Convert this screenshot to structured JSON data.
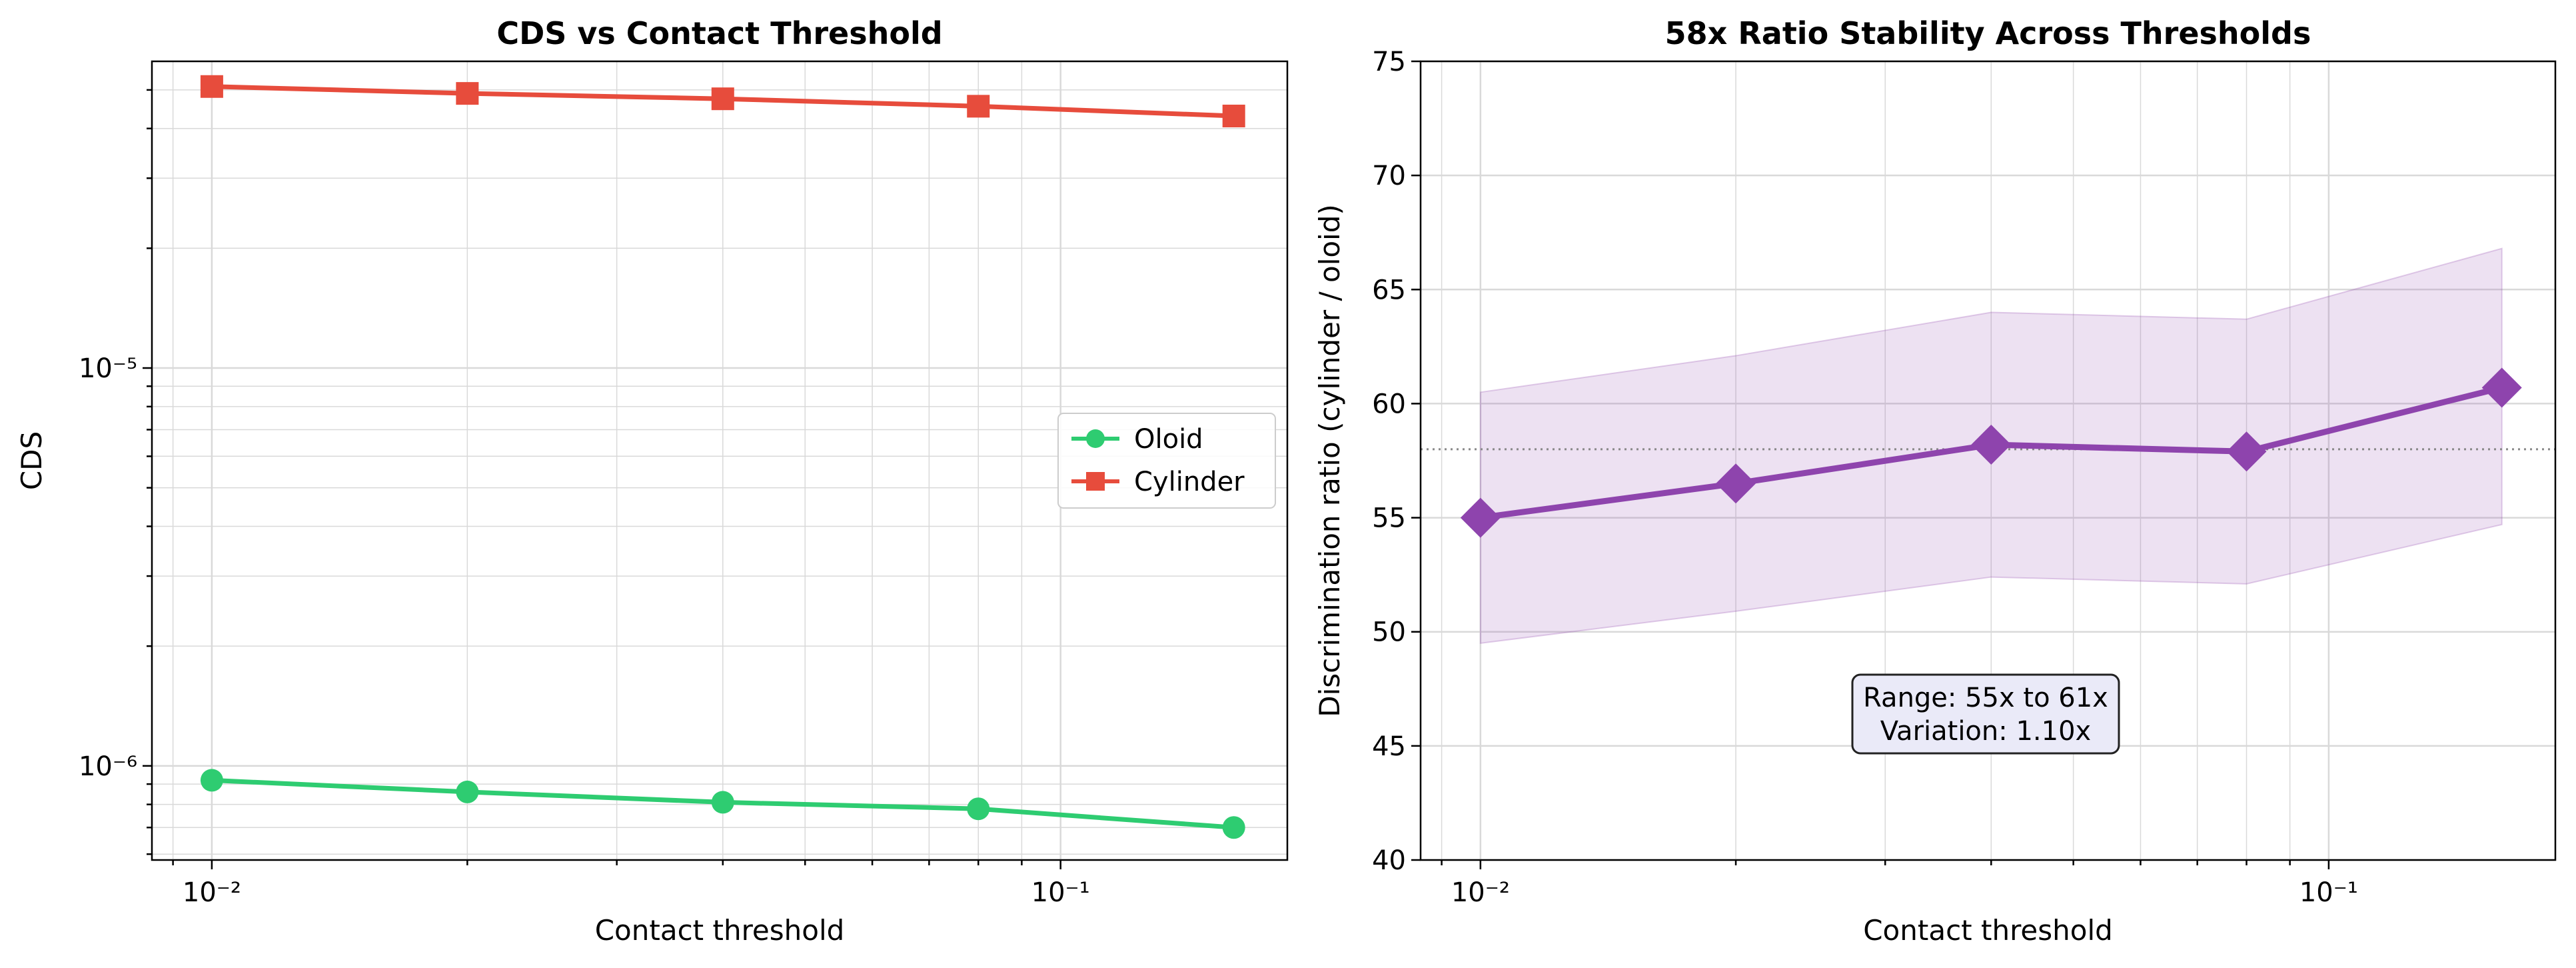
{
  "chart_data": [
    {
      "type": "line",
      "title": "CDS vs Contact Threshold",
      "xlabel": "Contact threshold",
      "ylabel": "CDS",
      "xscale": "log",
      "yscale": "log",
      "xlim": [
        0.0085,
        0.185
      ],
      "ylim": [
        5.8e-07,
        5.9e-05
      ],
      "x": [
        0.01,
        0.02,
        0.04,
        0.08,
        0.16
      ],
      "xticks": [
        {
          "value": 0.01,
          "label": "10⁻²"
        },
        {
          "value": 0.1,
          "label": "10⁻¹"
        }
      ],
      "yticks": [
        {
          "value": 1e-06,
          "label": "10⁻⁶"
        },
        {
          "value": 1e-05,
          "label": "10⁻⁵"
        }
      ],
      "grid": true,
      "legend": "center-right",
      "series": [
        {
          "name": "Oloid",
          "color": "#2ecc71",
          "marker": "circle",
          "values": [
            9.2e-07,
            8.6e-07,
            8.1e-07,
            7.8e-07,
            7e-07
          ]
        },
        {
          "name": "Cylinder",
          "color": "#e74c3c",
          "marker": "square",
          "values": [
            5.1e-05,
            4.9e-05,
            4.75e-05,
            4.55e-05,
            4.3e-05
          ]
        }
      ]
    },
    {
      "type": "line",
      "title": "58x Ratio Stability Across Thresholds",
      "xlabel": "Contact threshold",
      "ylabel": "Discrimination ratio (cylinder / oloid)",
      "xscale": "log",
      "yscale": "linear",
      "xlim": [
        0.0085,
        0.185
      ],
      "ylim": [
        40,
        75
      ],
      "x": [
        0.01,
        0.02,
        0.04,
        0.08,
        0.16
      ],
      "xticks": [
        {
          "value": 0.01,
          "label": "10⁻²"
        },
        {
          "value": 0.1,
          "label": "10⁻¹"
        }
      ],
      "yticks": [
        40,
        45,
        50,
        55,
        60,
        65,
        70,
        75
      ],
      "grid": true,
      "series": [
        {
          "color": "#8e44ad",
          "marker": "diamond",
          "values": [
            55.0,
            56.5,
            58.2,
            57.9,
            60.7
          ]
        }
      ],
      "band": {
        "color": "#8e44ad",
        "lower": [
          49.5,
          50.9,
          52.4,
          52.1,
          54.7
        ],
        "upper": [
          60.5,
          62.1,
          64.0,
          63.7,
          66.8
        ]
      },
      "reference_line": {
        "y": 58,
        "style": "dotted",
        "color": "#888888"
      },
      "annotation": {
        "lines": [
          "Range: 55x to 61x",
          "Variation: 1.10x"
        ],
        "box_fill": "#eaeaf8"
      }
    }
  ]
}
